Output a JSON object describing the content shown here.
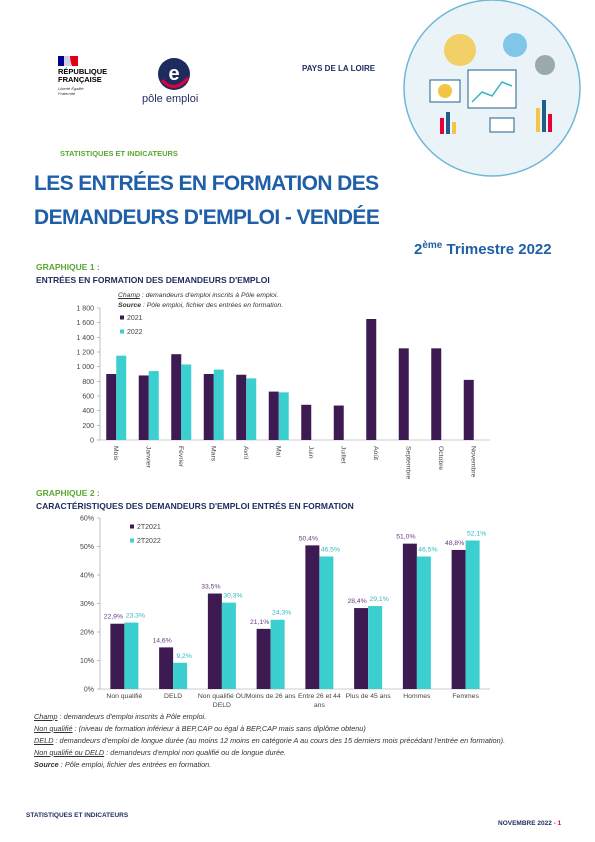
{
  "header": {
    "republique": "RÉPUBLIQUE FRANÇAISE",
    "motto": "Liberté Égalité Fraternité",
    "pole_emploi": "pôle emploi",
    "region": "PAYS DE LA LOIRE",
    "section": "STATISTIQUES ET INDICATEURS",
    "title_line1": "LES ENTRÉES EN FORMATION DES",
    "title_line2": "DEMANDEURS D'EMPLOI - VENDÉE",
    "quarter_num": "2",
    "quarter_sup": "ème",
    "quarter_text": " Trimestre 2022"
  },
  "chart_data": [
    {
      "type": "bar",
      "label": "GRAPHIQUE 1 :",
      "title": "ENTRÉES EN FORMATION DES DEMANDEURS D'EMPLOI",
      "annotations": [
        {
          "term": "Champ",
          "text": " : demandeurs d'emploi inscrits à Pôle emploi."
        },
        {
          "term": "Source",
          "text": " : Pôle emploi, fichier des entrées en formation."
        }
      ],
      "categories": [
        "Mois",
        "Janvier",
        "Février",
        "Mars",
        "Avril",
        "Mai",
        "Juin",
        "Juillet",
        "Août",
        "Septembre",
        "Octobre",
        "Novembre"
      ],
      "series": [
        {
          "name": "2021",
          "color": "#3d1a52",
          "values": [
            900,
            880,
            1170,
            900,
            890,
            660,
            480,
            470,
            1650,
            1250,
            1250,
            820
          ]
        },
        {
          "name": "2022",
          "color": "#3ccfcf",
          "values": [
            1150,
            940,
            1030,
            960,
            840,
            650,
            null,
            null,
            null,
            null,
            null,
            null
          ]
        }
      ],
      "ylim": [
        0,
        1800
      ],
      "yticks": [
        0,
        200,
        400,
        600,
        800,
        {
          "value": 1000,
          "label": "1 000"
        },
        {
          "value": 1200,
          "label": "1 200"
        },
        {
          "value": 1400,
          "label": "1 400"
        },
        {
          "value": 1600,
          "label": "1 600"
        },
        {
          "value": 1800,
          "label": "1 800"
        }
      ],
      "grid": false
    },
    {
      "type": "bar",
      "label": "GRAPHIQUE 2 :",
      "title": "CARACTÉRISTIQUES DES DEMANDEURS D'EMPLOI ENTRÉS EN FORMATION",
      "categories": [
        "Non qualifié",
        "DELD",
        "Non qualifié OU DELD",
        "Moins de 26 ans",
        "Entre 26 et 44 ans",
        "Plus de 45 ans",
        "Hommes",
        "Femmes"
      ],
      "series": [
        {
          "name": "2T2021",
          "color": "#3d1a52",
          "label_color": "#6b3a82",
          "values": [
            22.9,
            14.6,
            33.5,
            21.1,
            50.4,
            28.4,
            51.0,
            48.8
          ],
          "value_labels": [
            "22,9%",
            "14,6%",
            "33,5%",
            "21,1%",
            "50,4%",
            "28,4%",
            "51,0%",
            "48,8%"
          ]
        },
        {
          "name": "2T2022",
          "color": "#3ccfcf",
          "label_color": "#2fb7c4",
          "values": [
            23.3,
            9.2,
            30.3,
            24.3,
            46.5,
            29.1,
            46.5,
            52.1
          ],
          "value_labels": [
            "23,3%",
            "9,2%",
            "30,3%",
            "24,3%",
            "46,5%",
            "29,1%",
            "46,5%",
            "52,1%"
          ]
        }
      ],
      "ylim": [
        0,
        60
      ],
      "yticks": [
        {
          "value": 0,
          "label": "0%"
        },
        {
          "value": 10,
          "label": "10%"
        },
        {
          "value": 20,
          "label": "20%"
        },
        {
          "value": 30,
          "label": "30%"
        },
        {
          "value": 40,
          "label": "40%"
        },
        {
          "value": 50,
          "label": "50%"
        },
        {
          "value": 60,
          "label": "60%"
        }
      ],
      "grid": false
    }
  ],
  "notes": [
    {
      "term": "Champ",
      "text": " : demandeurs d'emploi inscrits à Pôle emploi."
    },
    {
      "term": "Non qualifié",
      "text": " : (niveau de formation inférieur à BEP,CAP ou égal à BEP,CAP mais sans diplôme obtenu)"
    },
    {
      "term": "DELD",
      "text": " : demandeurs d'emploi de longue durée (au moins 12 moins en catégorie A au cours des 15 derniers mois précédant l'entrée en formation)."
    },
    {
      "term": "Non qualifié ou DELD",
      "text": " : demandeurs d'emploi non qualifié ou de longue durée."
    },
    {
      "term": "Source",
      "text": " : Pôle emploi, fichier des entrées en formation."
    }
  ],
  "footer": {
    "left": "STATISTIQUES ET INDICATEURS",
    "date": "NOVEMBRE 2022",
    "page": " - 1"
  }
}
